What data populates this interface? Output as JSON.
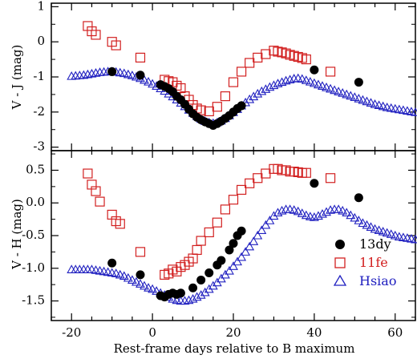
{
  "chart_data": [
    {
      "type": "scatter",
      "panel": "top",
      "ylabel": "V - J (mag)",
      "xlim": [
        -25,
        65
      ],
      "ylim": [
        -3.1,
        1.1
      ],
      "yticks": [
        "1",
        "0",
        "-1",
        "-2",
        "-3"
      ],
      "ytick_values": [
        1,
        0,
        -1,
        -2,
        -3
      ],
      "yminor": [
        0.5,
        -0.5,
        -1.5,
        -2.5
      ],
      "series": [
        {
          "name": "13dy",
          "marker": "filled-circle",
          "color": "#000000",
          "x": [
            -10,
            -3,
            2,
            3,
            4,
            5,
            6,
            7,
            8,
            9,
            10,
            11,
            12,
            13,
            14,
            15,
            16,
            17,
            18,
            19,
            20,
            21,
            22,
            40,
            51
          ],
          "y": [
            -0.85,
            -0.95,
            -1.22,
            -1.27,
            -1.33,
            -1.42,
            -1.55,
            -1.65,
            -1.78,
            -1.92,
            -2.05,
            -2.15,
            -2.22,
            -2.28,
            -2.33,
            -2.38,
            -2.33,
            -2.26,
            -2.18,
            -2.1,
            -2.0,
            -1.9,
            -1.82,
            -0.8,
            -1.15
          ]
        },
        {
          "name": "11fe",
          "marker": "open-square",
          "color": "#d22020",
          "x": [
            -16,
            -15,
            -14,
            -10,
            -9,
            -3,
            3,
            4,
            5,
            6,
            7,
            8,
            9,
            10,
            11,
            12,
            14,
            16,
            18,
            20,
            22,
            24,
            26,
            28,
            30,
            31,
            32,
            33,
            34,
            35,
            36,
            37,
            38,
            44
          ],
          "y": [
            0.45,
            0.3,
            0.2,
            0.0,
            -0.1,
            -0.45,
            -1.08,
            -1.12,
            -1.15,
            -1.25,
            -1.32,
            -1.55,
            -1.65,
            -1.8,
            -1.9,
            -1.95,
            -1.98,
            -1.85,
            -1.55,
            -1.15,
            -0.85,
            -0.6,
            -0.45,
            -0.35,
            -0.25,
            -0.28,
            -0.3,
            -0.33,
            -0.37,
            -0.4,
            -0.43,
            -0.46,
            -0.5,
            -0.85
          ]
        },
        {
          "name": "Hsiao",
          "marker": "open-triangle",
          "color": "#2020c0",
          "x": [
            -20,
            -19,
            -18,
            -17,
            -16,
            -15,
            -14,
            -13,
            -12,
            -11,
            -10,
            -9,
            -8,
            -7,
            -6,
            -5,
            -4,
            -3,
            -2,
            -1,
            0,
            1,
            2,
            3,
            4,
            5,
            6,
            7,
            8,
            9,
            10,
            11,
            12,
            13,
            14,
            15,
            16,
            17,
            18,
            19,
            20,
            21,
            22,
            23,
            24,
            25,
            26,
            27,
            28,
            29,
            30,
            31,
            32,
            33,
            34,
            35,
            36,
            37,
            38,
            39,
            40,
            41,
            42,
            43,
            44,
            45,
            46,
            47,
            48,
            49,
            50,
            51,
            52,
            53,
            54,
            55,
            56,
            57,
            58,
            59,
            60,
            61,
            62,
            63,
            64,
            65
          ],
          "y": [
            -0.98,
            -0.97,
            -0.96,
            -0.95,
            -0.93,
            -0.91,
            -0.89,
            -0.87,
            -0.86,
            -0.85,
            -0.85,
            -0.86,
            -0.88,
            -0.9,
            -0.93,
            -0.96,
            -1.0,
            -1.04,
            -1.09,
            -1.14,
            -1.2,
            -1.26,
            -1.33,
            -1.4,
            -1.48,
            -1.56,
            -1.65,
            -1.74,
            -1.84,
            -1.94,
            -2.03,
            -2.12,
            -2.2,
            -2.26,
            -2.3,
            -2.32,
            -2.3,
            -2.25,
            -2.18,
            -2.1,
            -2.01,
            -1.92,
            -1.82,
            -1.73,
            -1.64,
            -1.56,
            -1.48,
            -1.41,
            -1.35,
            -1.29,
            -1.24,
            -1.19,
            -1.15,
            -1.11,
            -1.08,
            -1.05,
            -1.04,
            -1.06,
            -1.1,
            -1.14,
            -1.18,
            -1.22,
            -1.26,
            -1.3,
            -1.34,
            -1.38,
            -1.42,
            -1.46,
            -1.5,
            -1.54,
            -1.58,
            -1.62,
            -1.66,
            -1.7,
            -1.74,
            -1.78,
            -1.81,
            -1.84,
            -1.87,
            -1.89,
            -1.91,
            -1.93,
            -1.95,
            -1.97,
            -1.99,
            -2.01
          ]
        }
      ]
    },
    {
      "type": "scatter",
      "panel": "bottom",
      "xlabel": "Rest-frame days relative to B maximum",
      "ylabel": "V - H (mag)",
      "xlim": [
        -25,
        65
      ],
      "xticks": [
        "-20",
        "0",
        "20",
        "40",
        "60"
      ],
      "xtick_values": [
        -20,
        0,
        20,
        40,
        60
      ],
      "ylim": [
        -1.8,
        0.8
      ],
      "yticks": [
        "0.5",
        "0.0",
        "-0.5",
        "-1.0",
        "-1.5"
      ],
      "ytick_values": [
        0.5,
        0.0,
        -0.5,
        -1.0,
        -1.5
      ],
      "yminor": [
        0.75,
        0.25,
        -0.25,
        -0.75,
        -1.25,
        -1.75
      ],
      "series": [
        {
          "name": "13dy",
          "marker": "filled-circle",
          "color": "#000000",
          "x": [
            -10,
            -3,
            2,
            3,
            4,
            5,
            6,
            7,
            10,
            12,
            14,
            16,
            17,
            19,
            20,
            21,
            22,
            40,
            51
          ],
          "y": [
            -0.92,
            -1.1,
            -1.42,
            -1.44,
            -1.4,
            -1.38,
            -1.4,
            -1.38,
            -1.3,
            -1.18,
            -1.07,
            -0.95,
            -0.88,
            -0.72,
            -0.62,
            -0.5,
            -0.43,
            0.3,
            0.08
          ]
        },
        {
          "name": "11fe",
          "marker": "open-square",
          "color": "#d22020",
          "x": [
            -16,
            -15,
            -14,
            -13,
            -10,
            -9,
            -8,
            -3,
            3,
            4,
            5,
            6,
            7,
            8,
            9,
            10,
            11,
            12,
            14,
            16,
            18,
            20,
            22,
            24,
            26,
            28,
            30,
            31,
            32,
            33,
            34,
            35,
            36,
            37,
            38,
            44
          ],
          "y": [
            0.45,
            0.28,
            0.18,
            0.02,
            -0.18,
            -0.28,
            -0.32,
            -0.75,
            -1.1,
            -1.08,
            -1.02,
            -1.05,
            -0.98,
            -0.95,
            -0.9,
            -0.85,
            -0.72,
            -0.58,
            -0.45,
            -0.3,
            -0.1,
            0.05,
            0.2,
            0.3,
            0.38,
            0.45,
            0.52,
            0.52,
            0.5,
            0.5,
            0.48,
            0.48,
            0.47,
            0.46,
            0.46,
            0.38
          ]
        },
        {
          "name": "Hsiao",
          "marker": "open-triangle",
          "color": "#2020c0",
          "x": [
            -20,
            -19,
            -18,
            -17,
            -16,
            -15,
            -14,
            -13,
            -12,
            -11,
            -10,
            -9,
            -8,
            -7,
            -6,
            -5,
            -4,
            -3,
            -2,
            -1,
            0,
            1,
            2,
            3,
            4,
            5,
            6,
            7,
            8,
            9,
            10,
            11,
            12,
            13,
            14,
            15,
            16,
            17,
            18,
            19,
            20,
            21,
            22,
            23,
            24,
            25,
            26,
            27,
            28,
            29,
            30,
            31,
            32,
            33,
            34,
            35,
            36,
            37,
            38,
            39,
            40,
            41,
            42,
            43,
            44,
            45,
            46,
            47,
            48,
            49,
            50,
            51,
            52,
            53,
            54,
            55,
            56,
            57,
            58,
            59,
            60,
            61,
            62,
            63,
            64,
            65
          ],
          "y": [
            -1.02,
            -1.02,
            -1.02,
            -1.02,
            -1.02,
            -1.02,
            -1.03,
            -1.04,
            -1.05,
            -1.06,
            -1.07,
            -1.08,
            -1.1,
            -1.12,
            -1.15,
            -1.18,
            -1.21,
            -1.24,
            -1.27,
            -1.3,
            -1.32,
            -1.35,
            -1.38,
            -1.41,
            -1.44,
            -1.47,
            -1.49,
            -1.5,
            -1.5,
            -1.49,
            -1.47,
            -1.44,
            -1.41,
            -1.37,
            -1.32,
            -1.27,
            -1.22,
            -1.16,
            -1.1,
            -1.04,
            -0.97,
            -0.9,
            -0.83,
            -0.75,
            -0.67,
            -0.59,
            -0.5,
            -0.42,
            -0.34,
            -0.27,
            -0.2,
            -0.15,
            -0.12,
            -0.1,
            -0.1,
            -0.11,
            -0.13,
            -0.16,
            -0.19,
            -0.21,
            -0.22,
            -0.2,
            -0.17,
            -0.14,
            -0.11,
            -0.1,
            -0.1,
            -0.12,
            -0.15,
            -0.19,
            -0.23,
            -0.27,
            -0.31,
            -0.34,
            -0.37,
            -0.4,
            -0.42,
            -0.44,
            -0.46,
            -0.48,
            -0.5,
            -0.52,
            -0.53,
            -0.54,
            -0.55,
            -0.56
          ]
        }
      ]
    }
  ],
  "legend": {
    "placement": "lower-right of bottom panel",
    "items": [
      {
        "label": "13dy",
        "marker": "filled-circle",
        "color": "#000000"
      },
      {
        "label": "11fe",
        "marker": "open-square",
        "color": "#d22020"
      },
      {
        "label": "Hsiao",
        "marker": "open-triangle",
        "color": "#2020c0"
      }
    ]
  }
}
